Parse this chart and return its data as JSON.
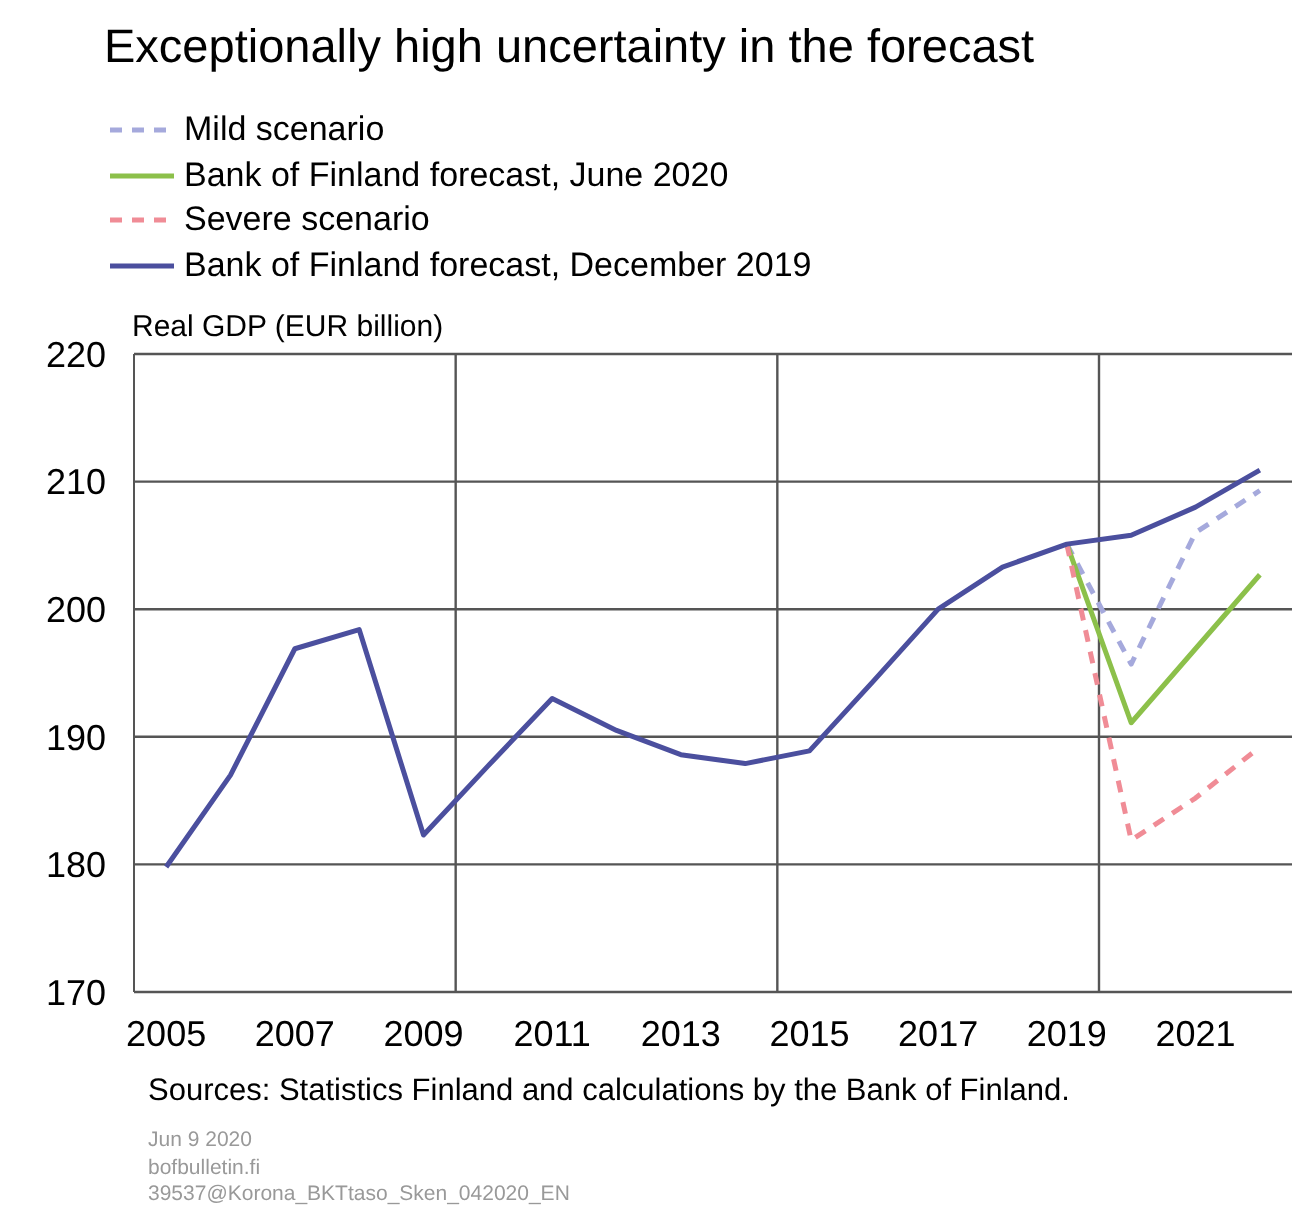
{
  "chart_data": {
    "type": "line",
    "title": "Exceptionally high uncertainty in the forecast",
    "ylabel": "Real GDP (EUR billion)",
    "x": [
      2005,
      2006,
      2007,
      2008,
      2009,
      2010,
      2011,
      2012,
      2013,
      2014,
      2015,
      2016,
      2017,
      2018,
      2019,
      2020,
      2021,
      2022
    ],
    "series": [
      {
        "name": "Mild scenario",
        "color": "#a5a9dc",
        "line_style": "dashed",
        "x": [
          2019,
          2020,
          2021,
          2022
        ],
        "values": [
          205.1,
          195.7,
          206.0,
          209.3
        ]
      },
      {
        "name": "Bank of Finland forecast, June 2020",
        "color": "#8cc04a",
        "line_style": "solid",
        "x": [
          2019,
          2020,
          2021,
          2022
        ],
        "values": [
          205.1,
          191.1,
          196.9,
          202.7
        ]
      },
      {
        "name": "Severe scenario",
        "color": "#f08c96",
        "line_style": "dashed",
        "x": [
          2019,
          2020,
          2021,
          2022
        ],
        "values": [
          205.1,
          181.9,
          185.2,
          189.2
        ]
      },
      {
        "name": "Bank of Finland forecast, December 2019",
        "color": "#4b4f9e",
        "line_style": "solid",
        "values": [
          179.8,
          187.0,
          196.9,
          198.4,
          182.3,
          187.7,
          193.0,
          190.5,
          188.6,
          187.9,
          188.9,
          194.4,
          200.0,
          203.3,
          205.1,
          205.8,
          208.0,
          210.9
        ]
      }
    ],
    "xlim": [
      2004.5,
      2022.5
    ],
    "xticks": [
      2005,
      2007,
      2009,
      {
        "value": 2009.5,
        "label": null
      },
      2011,
      2013,
      {
        "value": 2014.5,
        "label": null
      },
      2015,
      2017,
      2019,
      {
        "value": 2019.5,
        "label": null
      },
      2021
    ],
    "ylim": [
      170,
      220
    ],
    "yticks": [
      170,
      180,
      190,
      200,
      210,
      220
    ],
    "grid": true,
    "legend": "top",
    "annotations": [
      "Sources: Statistics Finland and calculations by the Bank of Finland.",
      "Jun 9 2020",
      "bofbulletin.fi",
      "39537@Korona_BKTtaso_Sken_042020_EN"
    ]
  }
}
